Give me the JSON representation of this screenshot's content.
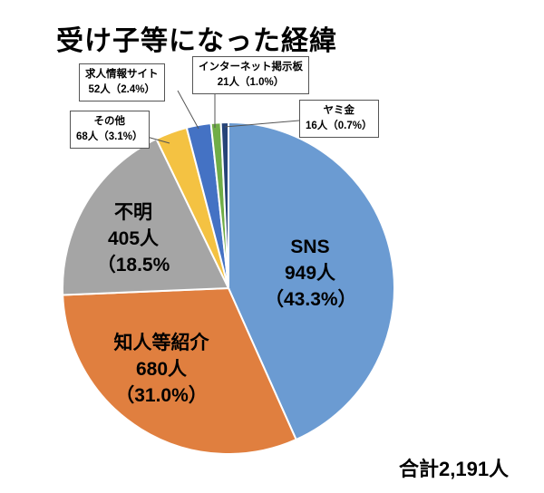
{
  "chart_data": {
    "type": "pie",
    "title": "受け子等になった経緯",
    "start": "top",
    "direction": "clockwise",
    "slices": [
      {
        "label": "SNS",
        "value": 949,
        "value_label": "949人",
        "percent_label": "（43.3%）",
        "color": "#6b9bd2"
      },
      {
        "label": "知人等紹介",
        "value": 680,
        "value_label": "680人",
        "percent_label": "（31.0%）",
        "color": "#e07f3f"
      },
      {
        "label": "不明",
        "value": 405,
        "value_label": "405人",
        "percent_label": "（18.5%",
        "color": "#a5a5a5"
      },
      {
        "label": "その他",
        "value": 68,
        "value_label": "68人（3.1%）",
        "color": "#f4c242"
      },
      {
        "label": "求人情報サイト",
        "value": 52,
        "value_label": "52人（2.4%）",
        "color": "#4472c4"
      },
      {
        "label": "インターネット掲示板",
        "value": 21,
        "value_label": "21人（1.0%）",
        "color": "#70ad47"
      },
      {
        "label": "ヤミ金",
        "value": 16,
        "value_label": "16人（0.7%）",
        "color": "#264478"
      }
    ],
    "total_label": "合計2,191人"
  }
}
